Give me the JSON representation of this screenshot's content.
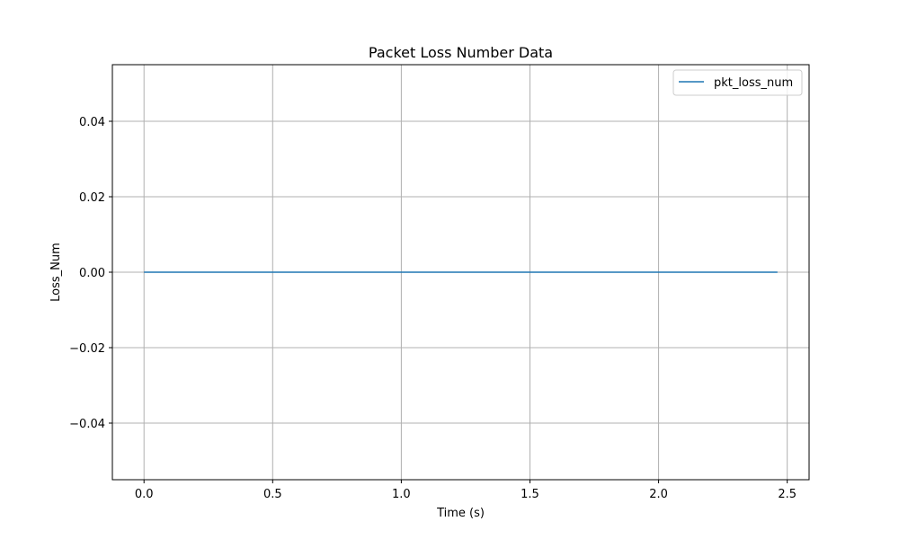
{
  "chart_data": {
    "type": "line",
    "title": "Packet Loss Number Data",
    "xlabel": "Time (s)",
    "ylabel": "Loss_Num",
    "xlim": [
      -0.123,
      2.585
    ],
    "ylim": [
      -0.055,
      0.055
    ],
    "xticks": [
      0.0,
      0.5,
      1.0,
      1.5,
      2.0,
      2.5
    ],
    "xtick_labels": [
      "0.0",
      "0.5",
      "1.0",
      "1.5",
      "2.0",
      "2.5"
    ],
    "yticks": [
      -0.04,
      -0.02,
      0.0,
      0.02,
      0.04
    ],
    "ytick_labels": [
      "−0.04",
      "−0.02",
      "0.00",
      "0.02",
      "0.04"
    ],
    "grid": true,
    "legend_position": "top-right",
    "series": [
      {
        "name": "pkt_loss_num",
        "color": "#1f77b4",
        "x": [
          0.0,
          2.462
        ],
        "y": [
          0,
          0
        ]
      }
    ]
  }
}
